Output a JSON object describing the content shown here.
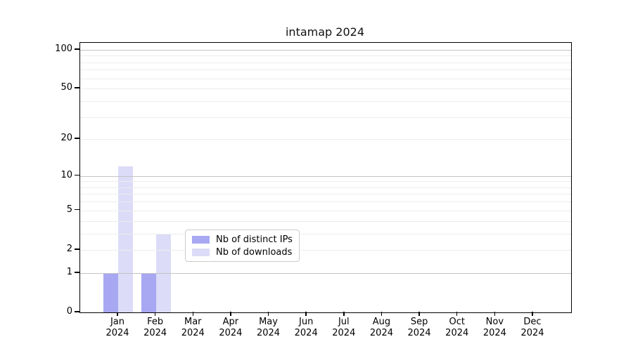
{
  "title": "intamap 2024",
  "chart_data": {
    "type": "bar",
    "title": "intamap 2024",
    "categories": [
      "Jan",
      "Feb",
      "Mar",
      "Apr",
      "May",
      "Jun",
      "Jul",
      "Aug",
      "Sep",
      "Oct",
      "Nov",
      "Dec"
    ],
    "year": "2024",
    "series": [
      {
        "name": "Nb of distinct IPs",
        "color": "#a7a7f2",
        "values": [
          1,
          1,
          0,
          0,
          0,
          0,
          0,
          0,
          0,
          0,
          0,
          0
        ]
      },
      {
        "name": "Nb of downloads",
        "color": "#dcdcf8",
        "values": [
          12,
          3,
          0,
          0,
          0,
          0,
          0,
          0,
          0,
          0,
          0,
          0
        ]
      }
    ],
    "y_ticks": [
      0,
      1,
      2,
      5,
      10,
      20,
      50,
      100
    ],
    "ylim": [
      0,
      112
    ],
    "scale": "log10(1+y)",
    "grid": "horizontal major at 1,10,100 + minor at 2-9,20-90",
    "legend_position": "inside-bottom-center",
    "colors": {
      "major_grid": "#c4c4c4",
      "minor_grid": "#ededed",
      "axis": "#000000",
      "background": "#ffffff"
    }
  }
}
